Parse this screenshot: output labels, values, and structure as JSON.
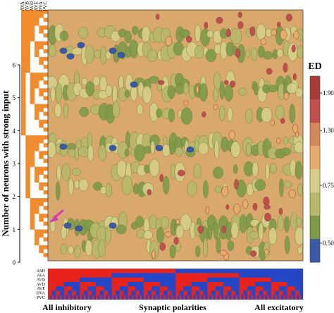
{
  "chart_data": {
    "type": "heatmap",
    "title": "",
    "ylabel": "Number of neurons with strong input",
    "ytick_labels": [
      "0",
      "1",
      "2",
      "3",
      "4",
      "5",
      "6"
    ],
    "ylim": [
      0,
      6
    ],
    "top_neurons": [
      "AVA",
      "AVB",
      "AVD",
      "AVE",
      "DVA",
      "PVC"
    ],
    "bottom_neurons": [
      "ASH",
      "AVA",
      "AVB",
      "AVD",
      "AVE",
      "DVA",
      "PVC"
    ],
    "x_labels": [
      "All inhibitory",
      "Synaptic polarities",
      "All excitatory"
    ],
    "colorbar": {
      "title": "ED",
      "tick_labels": [
        "0.500",
        "0.750",
        "1.30",
        "1.90"
      ],
      "colors": [
        "#3b5aa6",
        "#7e9a48",
        "#b8b96a",
        "#d6cf88",
        "#e6ac6a",
        "#d4895c",
        "#c0504d",
        "#a83a36"
      ]
    },
    "colors": {
      "background_field": "#d8a86c",
      "orange": "#f28b2c",
      "matrix_red": "#e8231c",
      "matrix_blue": "#2347c9",
      "arrow": "#d63bb5"
    }
  }
}
